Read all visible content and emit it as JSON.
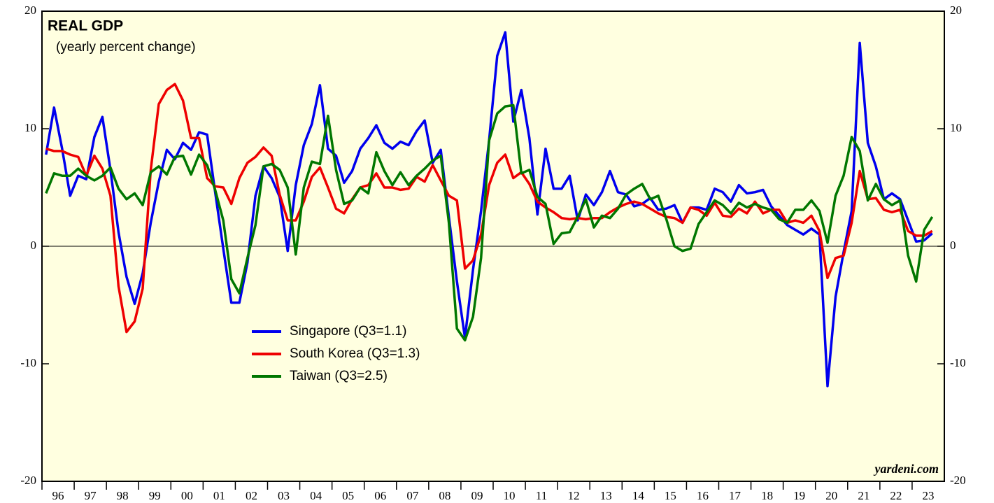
{
  "chart_data": {
    "type": "line",
    "title": "REAL GDP",
    "subtitle": "(yearly percent change)",
    "source": "yardeni.com",
    "x": [
      1996.125,
      1996.375,
      1996.625,
      1996.875,
      1997.125,
      1997.375,
      1997.625,
      1997.875,
      1998.125,
      1998.375,
      1998.625,
      1998.875,
      1999.125,
      1999.375,
      1999.625,
      1999.875,
      2000.125,
      2000.375,
      2000.625,
      2000.875,
      2001.125,
      2001.375,
      2001.625,
      2001.875,
      2002.125,
      2002.375,
      2002.625,
      2002.875,
      2003.125,
      2003.375,
      2003.625,
      2003.875,
      2004.125,
      2004.375,
      2004.625,
      2004.875,
      2005.125,
      2005.375,
      2005.625,
      2005.875,
      2006.125,
      2006.375,
      2006.625,
      2006.875,
      2007.125,
      2007.375,
      2007.625,
      2007.875,
      2008.125,
      2008.375,
      2008.625,
      2008.875,
      2009.125,
      2009.375,
      2009.625,
      2009.875,
      2010.125,
      2010.375,
      2010.625,
      2010.875,
      2011.125,
      2011.375,
      2011.625,
      2011.875,
      2012.125,
      2012.375,
      2012.625,
      2012.875,
      2013.125,
      2013.375,
      2013.625,
      2013.875,
      2014.125,
      2014.375,
      2014.625,
      2014.875,
      2015.125,
      2015.375,
      2015.625,
      2015.875,
      2016.125,
      2016.375,
      2016.625,
      2016.875,
      2017.125,
      2017.375,
      2017.625,
      2017.875,
      2018.125,
      2018.375,
      2018.625,
      2018.875,
      2019.125,
      2019.375,
      2019.625,
      2019.875,
      2020.125,
      2020.375,
      2020.625,
      2020.875,
      2021.125,
      2021.375,
      2021.625,
      2021.875,
      2022.125,
      2022.375,
      2022.625,
      2022.875,
      2023.125,
      2023.375,
      2023.625
    ],
    "series": [
      {
        "name": "Singapore (Q3=1.1)",
        "color": "#0000ee",
        "values": [
          7.8,
          11.8,
          8.3,
          4.3,
          6.0,
          5.7,
          9.3,
          11.0,
          6.5,
          1.2,
          -2.6,
          -4.9,
          -2.3,
          2.0,
          5.5,
          8.2,
          7.4,
          8.8,
          8.2,
          9.7,
          9.5,
          4.6,
          -0.2,
          -4.8,
          -4.8,
          -1.4,
          4.3,
          6.8,
          5.8,
          4.2,
          -0.4,
          5.2,
          8.6,
          10.4,
          13.7,
          8.3,
          7.7,
          5.4,
          6.4,
          8.3,
          9.2,
          10.3,
          8.8,
          8.3,
          8.9,
          8.6,
          9.8,
          10.7,
          7.1,
          8.2,
          2.5,
          -3.0,
          -7.8,
          -2.0,
          3.0,
          9.0,
          16.2,
          18.2,
          10.6,
          13.3,
          9.2,
          2.7,
          8.3,
          4.9,
          4.9,
          6.0,
          2.2,
          4.4,
          3.5,
          4.6,
          6.4,
          4.6,
          4.4,
          3.4,
          3.6,
          4.1,
          3.1,
          3.2,
          3.5,
          2.0,
          3.3,
          3.3,
          3.1,
          4.9,
          4.6,
          3.8,
          5.2,
          4.5,
          4.6,
          4.8,
          3.4,
          2.6,
          1.8,
          1.4,
          1.0,
          1.5,
          1.0,
          -11.9,
          -4.3,
          -0.5,
          3.0,
          17.3,
          8.8,
          6.8,
          4.0,
          4.5,
          4.0,
          2.2,
          0.4,
          0.5,
          1.1
        ]
      },
      {
        "name": "South Korea (Q3=1.3)",
        "color": "#ee0000",
        "values": [
          8.3,
          8.1,
          8.1,
          7.8,
          7.6,
          6.0,
          7.7,
          6.6,
          4.3,
          -3.4,
          -7.3,
          -6.4,
          -3.6,
          6.5,
          12.1,
          13.3,
          13.8,
          12.4,
          9.2,
          9.2,
          5.8,
          5.1,
          5.0,
          3.6,
          5.8,
          7.1,
          7.6,
          8.4,
          7.7,
          4.4,
          2.2,
          2.2,
          3.8,
          5.9,
          6.7,
          5.0,
          3.2,
          2.8,
          4.0,
          5.0,
          5.2,
          6.2,
          5.0,
          5.0,
          4.8,
          4.9,
          5.9,
          5.5,
          6.9,
          5.6,
          4.3,
          3.9,
          -1.9,
          -1.2,
          1.0,
          5.2,
          7.1,
          7.8,
          5.8,
          6.3,
          5.3,
          3.8,
          3.3,
          2.9,
          2.4,
          2.3,
          2.4,
          2.3,
          2.4,
          2.4,
          2.9,
          3.3,
          3.6,
          3.8,
          3.6,
          3.2,
          2.8,
          2.5,
          2.4,
          2.0,
          3.3,
          3.1,
          2.6,
          3.7,
          2.6,
          2.5,
          3.2,
          2.8,
          3.8,
          2.8,
          3.1,
          3.1,
          2.0,
          2.2,
          2.0,
          2.6,
          1.3,
          -2.7,
          -1.0,
          -0.8,
          2.0,
          6.4,
          4.0,
          4.1,
          3.1,
          2.9,
          3.1,
          1.3,
          0.9,
          0.9,
          1.3
        ]
      },
      {
        "name": "Taiwan (Q3=2.5)",
        "color": "#007700",
        "values": [
          4.5,
          6.2,
          6.0,
          6.0,
          6.6,
          6.0,
          5.6,
          6.0,
          6.7,
          4.9,
          4.0,
          4.5,
          3.5,
          6.3,
          6.8,
          6.1,
          7.6,
          7.7,
          6.1,
          7.8,
          6.9,
          4.8,
          2.2,
          -2.8,
          -4.0,
          -1.0,
          1.8,
          6.8,
          7.0,
          6.5,
          5.0,
          -0.7,
          5.0,
          7.2,
          7.0,
          11.1,
          6.5,
          3.6,
          3.9,
          5.0,
          4.5,
          8.0,
          6.4,
          5.2,
          6.3,
          5.2,
          6.0,
          6.6,
          7.3,
          7.7,
          2.0,
          -7.0,
          -8.0,
          -6.0,
          -1.0,
          9.0,
          11.3,
          11.9,
          12.0,
          6.2,
          6.5,
          4.2,
          3.6,
          0.2,
          1.1,
          1.2,
          2.5,
          4.0,
          1.6,
          2.6,
          2.4,
          3.2,
          4.4,
          4.9,
          5.3,
          4.0,
          4.3,
          2.3,
          0.0,
          -0.4,
          -0.2,
          1.9,
          2.9,
          3.9,
          3.5,
          2.8,
          3.7,
          3.3,
          3.6,
          3.3,
          3.1,
          2.3,
          2.0,
          3.1,
          3.1,
          3.9,
          3.0,
          0.3,
          4.3,
          6.0,
          9.3,
          8.1,
          3.9,
          5.3,
          4.0,
          3.5,
          3.9,
          -0.8,
          -3.0,
          1.4,
          2.5
        ]
      }
    ],
    "xlim": [
      1996,
      2024
    ],
    "xticks": [
      {
        "value": 1996,
        "label": "96"
      },
      {
        "value": 1997,
        "label": "97"
      },
      {
        "value": 1998,
        "label": "98"
      },
      {
        "value": 1999,
        "label": "99"
      },
      {
        "value": 2000,
        "label": "00"
      },
      {
        "value": 2001,
        "label": "01"
      },
      {
        "value": 2002,
        "label": "02"
      },
      {
        "value": 2003,
        "label": "03"
      },
      {
        "value": 2004,
        "label": "04"
      },
      {
        "value": 2005,
        "label": "05"
      },
      {
        "value": 2006,
        "label": "06"
      },
      {
        "value": 2007,
        "label": "07"
      },
      {
        "value": 2008,
        "label": "08"
      },
      {
        "value": 2009,
        "label": "09"
      },
      {
        "value": 2010,
        "label": "10"
      },
      {
        "value": 2011,
        "label": "11"
      },
      {
        "value": 2012,
        "label": "12"
      },
      {
        "value": 2013,
        "label": "13"
      },
      {
        "value": 2014,
        "label": "14"
      },
      {
        "value": 2015,
        "label": "15"
      },
      {
        "value": 2016,
        "label": "16"
      },
      {
        "value": 2017,
        "label": "17"
      },
      {
        "value": 2018,
        "label": "18"
      },
      {
        "value": 2019,
        "label": "19"
      },
      {
        "value": 2020,
        "label": "20"
      },
      {
        "value": 2021,
        "label": "21"
      },
      {
        "value": 2022,
        "label": "22"
      },
      {
        "value": 2023,
        "label": "23"
      }
    ],
    "ylim": [
      -20,
      20
    ],
    "yticks": [
      -20,
      -10,
      0,
      10,
      20
    ],
    "y2lim": [
      -20,
      20
    ],
    "y2ticks": [
      -20,
      -10,
      0,
      10,
      20
    ],
    "zero_line": true
  }
}
